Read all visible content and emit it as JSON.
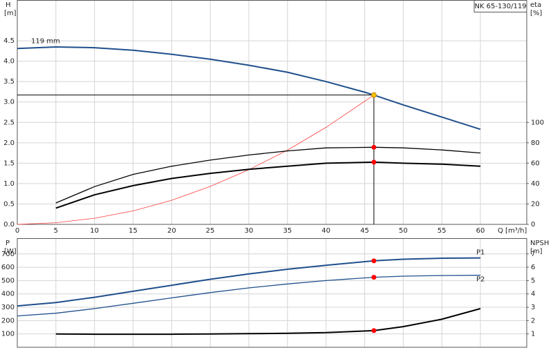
{
  "chart_data": [
    {
      "type": "line",
      "title": "NK 65-130/119",
      "ylabel": "H",
      "yunit": "[m]",
      "y2label": "eta",
      "y2unit": "[%]",
      "xlabel": "Q [m³/h]",
      "xlim": [
        0,
        66
      ],
      "xticks": [
        0,
        5,
        10,
        15,
        20,
        25,
        30,
        35,
        40,
        45,
        50,
        55,
        60
      ],
      "xtick_labels": true,
      "ylim": [
        0,
        5.5
      ],
      "yticks": [
        {
          "value": 0,
          "label": "0.0"
        },
        {
          "value": 0.5,
          "label": "0.5"
        },
        {
          "value": 1,
          "label": "1.0"
        },
        {
          "value": 1.5,
          "label": "1.5"
        },
        {
          "value": 2,
          "label": "2.0"
        },
        {
          "value": 2.5,
          "label": "2.5"
        },
        {
          "value": 3,
          "label": "3.0"
        },
        {
          "value": 3.5,
          "label": "3.5"
        },
        {
          "value": 4,
          "label": "4.0"
        },
        {
          "value": 4.5,
          "label": "4.5"
        }
      ],
      "y2lim": [
        0,
        220
      ],
      "y2ticks": [
        0,
        20,
        40,
        60,
        80,
        100
      ],
      "grid": true,
      "series": [
        {
          "name": "119 mm",
          "label_at": "start",
          "color": "#1f4f8c",
          "weight": "bold",
          "x": [
            0,
            5,
            10,
            15,
            20,
            25,
            30,
            35,
            40,
            45,
            46.2,
            50,
            55,
            60
          ],
          "values": [
            4.31,
            4.35,
            4.33,
            4.27,
            4.17,
            4.05,
            3.9,
            3.73,
            3.5,
            3.24,
            3.17,
            2.93,
            2.63,
            2.33
          ]
        },
        {
          "color": "#ff3b3b",
          "weight": "thin",
          "x": [
            0,
            5,
            10,
            15,
            20,
            25,
            30,
            35,
            40,
            46.2
          ],
          "values": [
            0,
            0.04,
            0.15,
            0.33,
            0.59,
            0.93,
            1.34,
            1.82,
            2.38,
            3.17
          ]
        },
        {
          "color": "#000000",
          "weight": "normal",
          "axis": "y2",
          "x": [
            5,
            10,
            15,
            20,
            25,
            30,
            35,
            40,
            46.2,
            50,
            55,
            60
          ],
          "values": [
            21,
            37,
            49,
            57,
            63,
            68,
            72,
            75,
            75.6,
            75,
            73,
            70
          ]
        },
        {
          "color": "#000000",
          "weight": "bold",
          "axis": "y2",
          "x": [
            5,
            10,
            15,
            20,
            25,
            30,
            35,
            40,
            46.2,
            50,
            55,
            60
          ],
          "values": [
            16,
            29,
            38,
            45,
            50,
            54,
            57,
            60,
            61,
            60,
            59,
            57
          ]
        }
      ],
      "points": [
        {
          "x": 46.2,
          "y": 3.17,
          "color": "#f5c400",
          "guides": true
        },
        {
          "x": 46.2,
          "y": 75.6,
          "axis": "y2",
          "color": "#ff0000"
        },
        {
          "x": 46.2,
          "y": 61,
          "axis": "y2",
          "color": "#ff0000"
        }
      ]
    },
    {
      "type": "line",
      "ylabel": "P",
      "yunit": "[W]",
      "y2label": "NPSH",
      "y2unit": "[m]",
      "xlim": [
        0,
        66
      ],
      "xticks": [
        0,
        5,
        10,
        15,
        20,
        25,
        30,
        35,
        40,
        45,
        50,
        55,
        60
      ],
      "xtick_labels": false,
      "ylim": [
        0,
        818
      ],
      "yticks": [
        100,
        200,
        300,
        400,
        500,
        600,
        700
      ],
      "y2lim": [
        0,
        8.18
      ],
      "y2ticks": [
        1,
        2,
        3,
        4,
        5,
        6,
        7
      ],
      "grid": true,
      "series": [
        {
          "name": "P1",
          "label_at": "end",
          "color": "#1f4f8c",
          "weight": "bold",
          "x": [
            0,
            5,
            10,
            15,
            20,
            25,
            30,
            35,
            40,
            46.2,
            50,
            55,
            60
          ],
          "values": [
            310,
            335,
            375,
            420,
            465,
            510,
            550,
            585,
            615,
            648,
            660,
            668,
            670
          ]
        },
        {
          "name": "P2",
          "label_at": "end",
          "color": "#1f4f8c",
          "weight": "normal",
          "x": [
            0,
            5,
            10,
            15,
            20,
            25,
            30,
            35,
            40,
            46.2,
            50,
            55,
            60
          ],
          "values": [
            235,
            255,
            290,
            330,
            370,
            410,
            445,
            475,
            500,
            525,
            533,
            538,
            540
          ]
        },
        {
          "color": "#000000",
          "weight": "bold",
          "axis": "y2",
          "x": [
            5,
            10,
            15,
            20,
            25,
            30,
            35,
            40,
            46.2,
            50,
            55,
            60
          ],
          "values": [
            1.0,
            0.98,
            0.98,
            0.98,
            1.0,
            1.02,
            1.05,
            1.1,
            1.25,
            1.55,
            2.1,
            2.9
          ]
        }
      ],
      "points": [
        {
          "x": 46.2,
          "y": 648,
          "color": "#ff0000"
        },
        {
          "x": 46.2,
          "y": 525,
          "color": "#ff0000"
        },
        {
          "x": 46.2,
          "y": 1.25,
          "axis": "y2",
          "color": "#ff0000"
        }
      ]
    }
  ]
}
